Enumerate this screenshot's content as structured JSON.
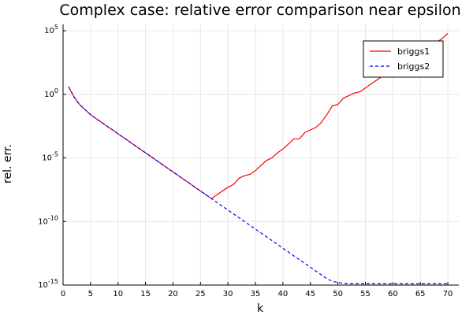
{
  "chart_data": {
    "type": "line",
    "title": "Complex case: relative error comparison near epsilon",
    "xlabel": "k",
    "ylabel": "rel. err.",
    "xlim": [
      0,
      72
    ],
    "ylim_log10": [
      -15,
      5.5
    ],
    "yscale": "log",
    "grid": true,
    "legend_position": "top-right",
    "x_ticks": [
      0,
      5,
      10,
      15,
      20,
      25,
      30,
      35,
      40,
      45,
      50,
      55,
      60,
      65,
      70
    ],
    "y_ticks": [
      {
        "base": "10",
        "exp": "5",
        "log10": 5
      },
      {
        "base": "10",
        "exp": "0",
        "log10": 0
      },
      {
        "base": "10",
        "exp": "-5",
        "log10": -5
      },
      {
        "base": "10",
        "exp": "-10",
        "log10": -10
      },
      {
        "base": "10",
        "exp": "-15",
        "log10": -15
      }
    ],
    "series": [
      {
        "name": "briggs1",
        "color": "#ff0000",
        "dash": "solid",
        "x": [
          1,
          2,
          3,
          4,
          5,
          6,
          7,
          8,
          9,
          10,
          11,
          12,
          13,
          14,
          15,
          16,
          17,
          18,
          19,
          20,
          21,
          22,
          23,
          24,
          25,
          26,
          27,
          28,
          29,
          30,
          31,
          32,
          33,
          34,
          35,
          36,
          37,
          38,
          39,
          40,
          41,
          42,
          43,
          44,
          45,
          46,
          47,
          48,
          49,
          50,
          51,
          52,
          53,
          54,
          55,
          56,
          57,
          58,
          59,
          60,
          61,
          62,
          63,
          64,
          65,
          66,
          67,
          68,
          69,
          70
        ],
        "log10_y": [
          0.6,
          -0.2,
          -0.8,
          -1.2,
          -1.6,
          -1.9,
          -2.2,
          -2.5,
          -2.8,
          -3.1,
          -3.4,
          -3.7,
          -4.0,
          -4.3,
          -4.6,
          -4.9,
          -5.2,
          -5.5,
          -5.8,
          -6.1,
          -6.4,
          -6.7,
          -7.0,
          -7.3,
          -7.6,
          -7.9,
          -8.2,
          -7.9,
          -7.6,
          -7.3,
          -7.1,
          -6.6,
          -6.4,
          -6.3,
          -6.0,
          -5.6,
          -5.2,
          -5.0,
          -4.6,
          -4.3,
          -3.9,
          -3.5,
          -3.5,
          -3.0,
          -2.8,
          -2.6,
          -2.2,
          -1.6,
          -0.9,
          -0.8,
          -0.3,
          -0.1,
          0.1,
          0.2,
          0.5,
          0.8,
          1.1,
          1.4,
          1.7,
          2.0,
          2.3,
          2.5,
          2.6,
          2.8,
          3.1,
          3.4,
          3.8,
          4.1,
          4.4,
          4.8
        ]
      },
      {
        "name": "briggs2",
        "color": "#0000ff",
        "dash": "dashed",
        "x": [
          1,
          2,
          3,
          4,
          5,
          6,
          7,
          8,
          9,
          10,
          11,
          12,
          13,
          14,
          15,
          16,
          17,
          18,
          19,
          20,
          21,
          22,
          23,
          24,
          25,
          26,
          27,
          28,
          29,
          30,
          31,
          32,
          33,
          34,
          35,
          36,
          37,
          38,
          39,
          40,
          41,
          42,
          43,
          44,
          45,
          46,
          47,
          48,
          49,
          50,
          51,
          52,
          53,
          54,
          55,
          56,
          57,
          58,
          59,
          60,
          61,
          62,
          63,
          64,
          65,
          66,
          67,
          68,
          69,
          70
        ],
        "log10_y": [
          0.6,
          -0.2,
          -0.8,
          -1.2,
          -1.6,
          -1.9,
          -2.2,
          -2.5,
          -2.8,
          -3.1,
          -3.4,
          -3.7,
          -4.0,
          -4.3,
          -4.6,
          -4.9,
          -5.2,
          -5.5,
          -5.8,
          -6.1,
          -6.4,
          -6.7,
          -7.0,
          -7.3,
          -7.6,
          -7.9,
          -8.2,
          -8.5,
          -8.8,
          -9.1,
          -9.4,
          -9.7,
          -10.0,
          -10.3,
          -10.6,
          -10.9,
          -11.2,
          -11.5,
          -11.8,
          -12.1,
          -12.4,
          -12.7,
          -13.0,
          -13.3,
          -13.6,
          -13.9,
          -14.2,
          -14.5,
          -14.7,
          -14.8,
          -14.85,
          -14.9,
          -14.9,
          -14.9,
          -14.9,
          -14.9,
          -14.9,
          -14.9,
          -14.9,
          -14.9,
          -14.9,
          -14.9,
          -14.9,
          -14.9,
          -14.9,
          -14.9,
          -14.9,
          -14.9,
          -14.9,
          -14.9
        ]
      }
    ]
  }
}
